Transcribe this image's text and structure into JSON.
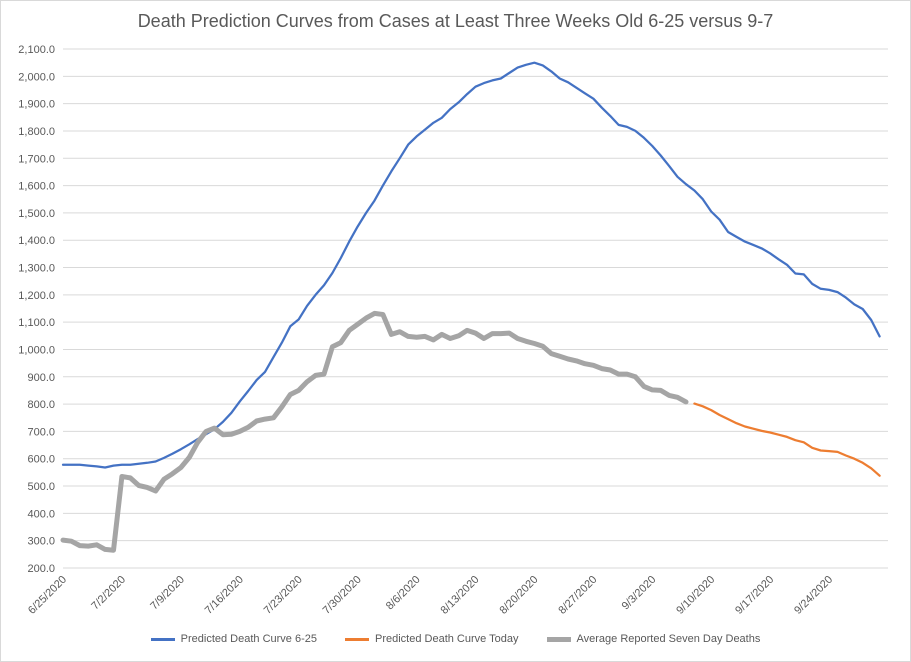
{
  "chart_data": {
    "type": "line",
    "title": "Death Prediction Curves from Cases at Least Three Weeks Old 6-25 versus 9-7",
    "xlabel": "",
    "ylabel": "",
    "ylim": [
      200,
      2100
    ],
    "y_ticks": [
      "200.0",
      "300.0",
      "400.0",
      "500.0",
      "600.0",
      "700.0",
      "800.0",
      "900.0",
      "1,000.0",
      "1,100.0",
      "1,200.0",
      "1,300.0",
      "1,400.0",
      "1,500.0",
      "1,600.0",
      "1,700.0",
      "1,800.0",
      "1,900.0",
      "2,000.0",
      "2,100.0"
    ],
    "x_ticks": [
      "6/25/2020",
      "7/2/2020",
      "7/9/2020",
      "7/16/2020",
      "7/23/2020",
      "7/30/2020",
      "8/6/2020",
      "8/13/2020",
      "8/20/2020",
      "8/27/2020",
      "9/3/2020",
      "9/10/2020",
      "9/17/2020",
      "9/24/2020"
    ],
    "grid": true,
    "legend_position": "bottom",
    "series": [
      {
        "name": "Predicted Death Curve 6-25",
        "color": "#4472c4",
        "points": [
          [
            "6/25/2020",
            578
          ],
          [
            "6/26/2020",
            578
          ],
          [
            "6/27/2020",
            578
          ],
          [
            "6/28/2020",
            575
          ],
          [
            "6/29/2020",
            572
          ],
          [
            "6/30/2020",
            568
          ],
          [
            "7/1/2020",
            575
          ],
          [
            "7/2/2020",
            578
          ],
          [
            "7/3/2020",
            578
          ],
          [
            "7/4/2020",
            582
          ],
          [
            "7/5/2020",
            585
          ],
          [
            "7/6/2020",
            590
          ],
          [
            "7/7/2020",
            603
          ],
          [
            "7/8/2020",
            618
          ],
          [
            "7/9/2020",
            635
          ],
          [
            "7/10/2020",
            653
          ],
          [
            "7/11/2020",
            672
          ],
          [
            "7/12/2020",
            690
          ],
          [
            "7/13/2020",
            708
          ],
          [
            "7/14/2020",
            735
          ],
          [
            "7/15/2020",
            768
          ],
          [
            "7/16/2020",
            810
          ],
          [
            "7/17/2020",
            848
          ],
          [
            "7/18/2020",
            888
          ],
          [
            "7/19/2020",
            918
          ],
          [
            "7/20/2020",
            972
          ],
          [
            "7/21/2020",
            1025
          ],
          [
            "7/22/2020",
            1085
          ],
          [
            "7/23/2020",
            1110
          ],
          [
            "7/24/2020",
            1160
          ],
          [
            "7/25/2020",
            1200
          ],
          [
            "7/26/2020",
            1235
          ],
          [
            "7/27/2020",
            1280
          ],
          [
            "7/28/2020",
            1335
          ],
          [
            "7/29/2020",
            1395
          ],
          [
            "7/30/2020",
            1450
          ],
          [
            "7/31/2020",
            1500
          ],
          [
            "8/1/2020",
            1545
          ],
          [
            "8/2/2020",
            1600
          ],
          [
            "8/3/2020",
            1652
          ],
          [
            "8/4/2020",
            1700
          ],
          [
            "8/5/2020",
            1750
          ],
          [
            "8/6/2020",
            1780
          ],
          [
            "8/7/2020",
            1805
          ],
          [
            "8/8/2020",
            1830
          ],
          [
            "8/9/2020",
            1848
          ],
          [
            "8/10/2020",
            1880
          ],
          [
            "8/11/2020",
            1905
          ],
          [
            "8/12/2020",
            1935
          ],
          [
            "8/13/2020",
            1962
          ],
          [
            "8/14/2020",
            1975
          ],
          [
            "8/15/2020",
            1985
          ],
          [
            "8/16/2020",
            1992
          ],
          [
            "8/17/2020",
            2012
          ],
          [
            "8/18/2020",
            2032
          ],
          [
            "8/19/2020",
            2042
          ],
          [
            "8/20/2020",
            2050
          ],
          [
            "8/21/2020",
            2040
          ],
          [
            "8/22/2020",
            2018
          ],
          [
            "8/23/2020",
            1992
          ],
          [
            "8/24/2020",
            1978
          ],
          [
            "8/25/2020",
            1958
          ],
          [
            "8/26/2020",
            1938
          ],
          [
            "8/27/2020",
            1918
          ],
          [
            "8/28/2020",
            1885
          ],
          [
            "8/29/2020",
            1855
          ],
          [
            "8/30/2020",
            1822
          ],
          [
            "8/31/2020",
            1815
          ],
          [
            "9/1/2020",
            1800
          ],
          [
            "9/2/2020",
            1775
          ],
          [
            "9/3/2020",
            1745
          ],
          [
            "9/4/2020",
            1710
          ],
          [
            "9/5/2020",
            1672
          ],
          [
            "9/6/2020",
            1632
          ],
          [
            "9/7/2020",
            1605
          ],
          [
            "9/8/2020",
            1582
          ],
          [
            "9/9/2020",
            1550
          ],
          [
            "9/10/2020",
            1505
          ],
          [
            "9/11/2020",
            1475
          ],
          [
            "9/12/2020",
            1430
          ],
          [
            "9/13/2020",
            1412
          ],
          [
            "9/14/2020",
            1395
          ],
          [
            "9/15/2020",
            1383
          ],
          [
            "9/16/2020",
            1370
          ],
          [
            "9/17/2020",
            1352
          ],
          [
            "9/18/2020",
            1330
          ],
          [
            "9/19/2020",
            1310
          ],
          [
            "9/20/2020",
            1278
          ],
          [
            "9/21/2020",
            1275
          ],
          [
            "9/22/2020",
            1240
          ],
          [
            "9/23/2020",
            1222
          ],
          [
            "9/24/2020",
            1218
          ],
          [
            "9/25/2020",
            1210
          ],
          [
            "9/26/2020",
            1190
          ],
          [
            "9/27/2020",
            1165
          ],
          [
            "9/28/2020",
            1148
          ],
          [
            "9/29/2020",
            1108
          ],
          [
            "9/30/2020",
            1048
          ]
        ]
      },
      {
        "name": "Predicted Death Curve Today",
        "color": "#ed7d31",
        "points": [
          [
            "9/8/2020",
            802
          ],
          [
            "9/9/2020",
            792
          ],
          [
            "9/10/2020",
            778
          ],
          [
            "9/11/2020",
            760
          ],
          [
            "9/12/2020",
            745
          ],
          [
            "9/13/2020",
            730
          ],
          [
            "9/14/2020",
            718
          ],
          [
            "9/15/2020",
            710
          ],
          [
            "9/16/2020",
            702
          ],
          [
            "9/17/2020",
            696
          ],
          [
            "9/18/2020",
            688
          ],
          [
            "9/19/2020",
            680
          ],
          [
            "9/20/2020",
            668
          ],
          [
            "9/21/2020",
            660
          ],
          [
            "9/22/2020",
            640
          ],
          [
            "9/23/2020",
            630
          ],
          [
            "9/24/2020",
            628
          ],
          [
            "9/25/2020",
            625
          ],
          [
            "9/26/2020",
            612
          ],
          [
            "9/27/2020",
            600
          ],
          [
            "9/28/2020",
            585
          ],
          [
            "9/29/2020",
            565
          ],
          [
            "9/30/2020",
            538
          ]
        ]
      },
      {
        "name": "Average Reported Seven Day Deaths",
        "color": "#a5a5a5",
        "points": [
          [
            "6/25/2020",
            302
          ],
          [
            "6/26/2020",
            298
          ],
          [
            "6/27/2020",
            282
          ],
          [
            "6/28/2020",
            280
          ],
          [
            "6/29/2020",
            285
          ],
          [
            "6/30/2020",
            268
          ],
          [
            "7/1/2020",
            265
          ],
          [
            "7/2/2020",
            535
          ],
          [
            "7/3/2020",
            530
          ],
          [
            "7/4/2020",
            502
          ],
          [
            "7/5/2020",
            495
          ],
          [
            "7/6/2020",
            482
          ],
          [
            "7/7/2020",
            525
          ],
          [
            "7/8/2020",
            545
          ],
          [
            "7/9/2020",
            568
          ],
          [
            "7/10/2020",
            605
          ],
          [
            "7/11/2020",
            660
          ],
          [
            "7/12/2020",
            700
          ],
          [
            "7/13/2020",
            712
          ],
          [
            "7/14/2020",
            688
          ],
          [
            "7/15/2020",
            690
          ],
          [
            "7/16/2020",
            700
          ],
          [
            "7/17/2020",
            715
          ],
          [
            "7/18/2020",
            738
          ],
          [
            "7/19/2020",
            745
          ],
          [
            "7/20/2020",
            750
          ],
          [
            "7/21/2020",
            790
          ],
          [
            "7/22/2020",
            835
          ],
          [
            "7/23/2020",
            850
          ],
          [
            "7/24/2020",
            882
          ],
          [
            "7/25/2020",
            905
          ],
          [
            "7/26/2020",
            910
          ],
          [
            "7/27/2020",
            1010
          ],
          [
            "7/28/2020",
            1025
          ],
          [
            "7/29/2020",
            1070
          ],
          [
            "7/30/2020",
            1092
          ],
          [
            "7/31/2020",
            1115
          ],
          [
            "8/1/2020",
            1132
          ],
          [
            "8/2/2020",
            1128
          ],
          [
            "8/3/2020",
            1055
          ],
          [
            "8/4/2020",
            1065
          ],
          [
            "8/5/2020",
            1048
          ],
          [
            "8/6/2020",
            1045
          ],
          [
            "8/7/2020",
            1048
          ],
          [
            "8/8/2020",
            1035
          ],
          [
            "8/9/2020",
            1055
          ],
          [
            "8/10/2020",
            1040
          ],
          [
            "8/11/2020",
            1050
          ],
          [
            "8/12/2020",
            1070
          ],
          [
            "8/13/2020",
            1060
          ],
          [
            "8/14/2020",
            1040
          ],
          [
            "8/15/2020",
            1058
          ],
          [
            "8/16/2020",
            1058
          ],
          [
            "8/17/2020",
            1060
          ],
          [
            "8/18/2020",
            1040
          ],
          [
            "8/19/2020",
            1030
          ],
          [
            "8/20/2020",
            1022
          ],
          [
            "8/21/2020",
            1012
          ],
          [
            "8/22/2020",
            985
          ],
          [
            "8/23/2020",
            975
          ],
          [
            "8/24/2020",
            965
          ],
          [
            "8/25/2020",
            958
          ],
          [
            "8/26/2020",
            948
          ],
          [
            "8/27/2020",
            942
          ],
          [
            "8/28/2020",
            930
          ],
          [
            "8/29/2020",
            925
          ],
          [
            "8/30/2020",
            910
          ],
          [
            "8/31/2020",
            910
          ],
          [
            "9/1/2020",
            900
          ],
          [
            "9/2/2020",
            865
          ],
          [
            "9/3/2020",
            852
          ],
          [
            "9/4/2020",
            850
          ],
          [
            "9/5/2020",
            832
          ],
          [
            "9/6/2020",
            825
          ],
          [
            "9/7/2020",
            808
          ]
        ]
      }
    ]
  }
}
